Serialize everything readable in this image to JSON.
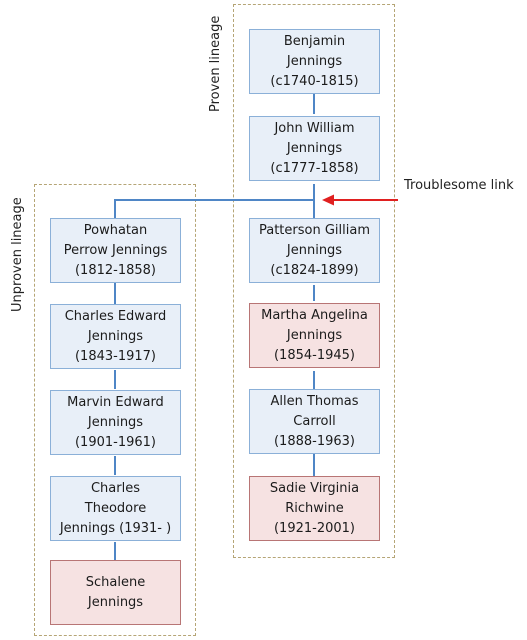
{
  "groups": {
    "proven": {
      "label": "Proven lineage"
    },
    "unproven": {
      "label": "Unproven lineage"
    }
  },
  "annotation": {
    "label": "Troublesome link",
    "color": "#e02020"
  },
  "colors": {
    "connector": "#4f86c6",
    "blue_fill": "#e8eff8",
    "red_fill": "#f6e2e2"
  },
  "people": [
    {
      "id": "benjamin",
      "name": "Benjamin\nJennings\n(c1740-1815)",
      "style": "blue"
    },
    {
      "id": "john-william",
      "name": "John William\nJennings\n(c1777-1858)",
      "style": "blue"
    },
    {
      "id": "patterson-gilliam",
      "name": "Patterson Gilliam\nJennings\n(c1824-1899)",
      "style": "blue"
    },
    {
      "id": "martha-angelina",
      "name": "Martha Angelina\nJennings\n(1854-1945)",
      "style": "red"
    },
    {
      "id": "allen-thomas",
      "name": "Allen Thomas\nCarroll\n(1888-1963)",
      "style": "blue"
    },
    {
      "id": "sadie-virginia",
      "name": "Sadie Virginia\nRichwine\n(1921-2001)",
      "style": "red"
    },
    {
      "id": "powhatan-perrow",
      "name": "Powhatan\nPerrow Jennings\n(1812-1858)",
      "style": "blue"
    },
    {
      "id": "charles-edward",
      "name": "Charles Edward\nJennings\n(1843-1917)",
      "style": "blue"
    },
    {
      "id": "marvin-edward",
      "name": "Marvin Edward\nJennings\n(1901-1961)",
      "style": "blue"
    },
    {
      "id": "charles-theodore",
      "name": "Charles\nTheodore\nJennings (1931- )",
      "style": "blue"
    },
    {
      "id": "schalene",
      "name": "Schalene\nJennings",
      "style": "red"
    }
  ]
}
